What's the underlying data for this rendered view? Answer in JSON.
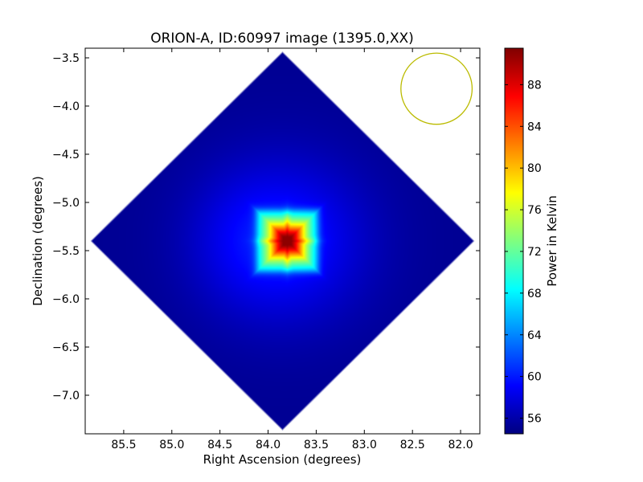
{
  "chart_data": {
    "type": "heatmap",
    "title": "ORION-A, ID:60997 image (1395.0,XX)",
    "xlabel": "Right Ascension (degrees)",
    "ylabel": "Declination (degrees)",
    "xlim": [
      85.9,
      81.8
    ],
    "ylim": [
      -7.4,
      -3.4
    ],
    "x_inverted": true,
    "x_ticks": [
      85.5,
      85.0,
      84.5,
      84.0,
      83.5,
      83.0,
      82.5,
      82.0
    ],
    "x_tick_labels": [
      "85.5",
      "85.0",
      "84.5",
      "84.0",
      "83.5",
      "83.0",
      "82.5",
      "82.0"
    ],
    "y_ticks": [
      -3.5,
      -4.0,
      -4.5,
      -5.0,
      -5.5,
      -6.0,
      -6.5,
      -7.0
    ],
    "y_tick_labels": [
      "−3.5",
      "−4.0",
      "−4.5",
      "−5.0",
      "−5.5",
      "−6.0",
      "−6.5",
      "−7.0"
    ],
    "colorbar": {
      "label": "Power in Kelvin",
      "colormap": "jet",
      "range": [
        54.5,
        91.5
      ],
      "ticks": [
        56,
        60,
        64,
        68,
        72,
        76,
        80,
        84,
        88
      ],
      "tick_labels": [
        "56",
        "60",
        "64",
        "68",
        "72",
        "76",
        "80",
        "84",
        "88"
      ]
    },
    "map": {
      "shape": "diamond",
      "center_ra": 83.85,
      "center_dec": -5.4,
      "extent_ra": [
        85.85,
        81.85
      ],
      "extent_dec": [
        -7.37,
        -3.43
      ],
      "background_value": 55.2,
      "peak": {
        "ra": 83.8,
        "dec": -5.4,
        "value": 91.0
      },
      "source_halfwidth_deg": 0.32
    },
    "beam": {
      "ra": 82.25,
      "dec": -3.82,
      "radius_deg": 0.37,
      "color": "#bbbb00"
    },
    "grid": false
  }
}
